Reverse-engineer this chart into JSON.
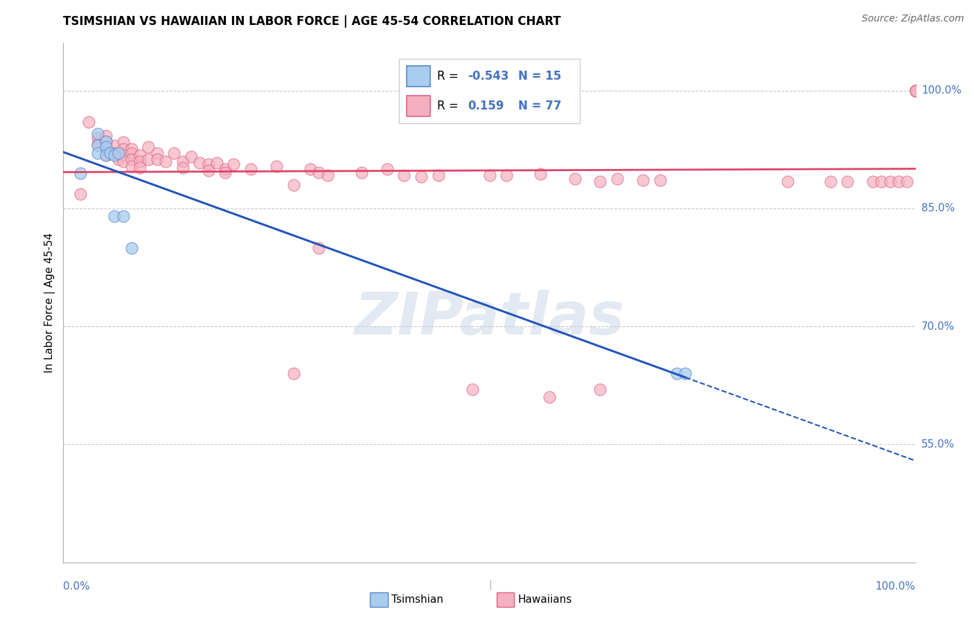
{
  "title": "TSIMSHIAN VS HAWAIIAN IN LABOR FORCE | AGE 45-54 CORRELATION CHART",
  "source": "Source: ZipAtlas.com",
  "ylabel": "In Labor Force | Age 45-54",
  "ytick_labels": [
    "55.0%",
    "70.0%",
    "85.0%",
    "100.0%"
  ],
  "ytick_values": [
    0.55,
    0.7,
    0.85,
    1.0
  ],
  "xmin": 0.0,
  "xmax": 1.0,
  "ymin": 0.4,
  "ymax": 1.06,
  "legend_r_tsimshian": "-0.543",
  "legend_n_tsimshian": "15",
  "legend_r_hawaiian": "0.159",
  "legend_n_hawaiian": "77",
  "tsimshian_face": "#aaccee",
  "tsimshian_edge": "#5588cc",
  "hawaiian_face": "#f5b0c0",
  "hawaiian_edge": "#e06080",
  "tsimshian_line_color": "#2255bb",
  "hawaiian_line_color": "#dd4466",
  "watermark": "ZIPatlas",
  "tsimshian_x": [
    0.02,
    0.04,
    0.04,
    0.04,
    0.05,
    0.05,
    0.05,
    0.055,
    0.06,
    0.06,
    0.065,
    0.07,
    0.08,
    0.72,
    0.73
  ],
  "tsimshian_y": [
    0.895,
    0.945,
    0.93,
    0.92,
    0.935,
    0.928,
    0.918,
    0.92,
    0.918,
    0.84,
    0.92,
    0.84,
    0.8,
    0.64,
    0.64
  ],
  "hawaiian_x": [
    0.02,
    0.03,
    0.04,
    0.04,
    0.05,
    0.05,
    0.05,
    0.05,
    0.06,
    0.06,
    0.065,
    0.07,
    0.07,
    0.07,
    0.07,
    0.08,
    0.08,
    0.08,
    0.08,
    0.09,
    0.09,
    0.09,
    0.1,
    0.1,
    0.11,
    0.11,
    0.12,
    0.13,
    0.14,
    0.14,
    0.15,
    0.16,
    0.17,
    0.17,
    0.18,
    0.19,
    0.19,
    0.2,
    0.22,
    0.25,
    0.27,
    0.29,
    0.3,
    0.31,
    0.35,
    0.38,
    0.4,
    0.42,
    0.44,
    0.5,
    0.52,
    0.56,
    0.6,
    0.63,
    0.65,
    0.68,
    0.7,
    0.85,
    0.9,
    0.92,
    0.95,
    0.96,
    0.97,
    0.98,
    0.99,
    1.0,
    1.0,
    1.0,
    1.0,
    1.0,
    1.0,
    1.0,
    0.27,
    0.3,
    0.48,
    0.57,
    0.63
  ],
  "hawaiian_y": [
    0.868,
    0.96,
    0.94,
    0.932,
    0.942,
    0.934,
    0.926,
    0.918,
    0.93,
    0.92,
    0.912,
    0.934,
    0.926,
    0.918,
    0.91,
    0.926,
    0.92,
    0.912,
    0.904,
    0.918,
    0.91,
    0.902,
    0.928,
    0.912,
    0.92,
    0.912,
    0.91,
    0.92,
    0.91,
    0.902,
    0.916,
    0.908,
    0.906,
    0.898,
    0.908,
    0.9,
    0.896,
    0.906,
    0.9,
    0.904,
    0.88,
    0.9,
    0.896,
    0.892,
    0.896,
    0.9,
    0.892,
    0.89,
    0.892,
    0.892,
    0.892,
    0.894,
    0.888,
    0.884,
    0.888,
    0.886,
    0.886,
    0.884,
    0.884,
    0.884,
    0.884,
    0.884,
    0.884,
    0.884,
    0.884,
    1.0,
    1.0,
    1.0,
    1.0,
    1.0,
    1.0,
    1.0,
    0.64,
    0.8,
    0.62,
    0.61,
    0.62
  ],
  "bottom_legend_items": [
    {
      "label": "Tsimshian",
      "face": "#aaccee",
      "edge": "#5588cc"
    },
    {
      "label": "Hawaiians",
      "face": "#f5b0c0",
      "edge": "#e06080"
    }
  ]
}
